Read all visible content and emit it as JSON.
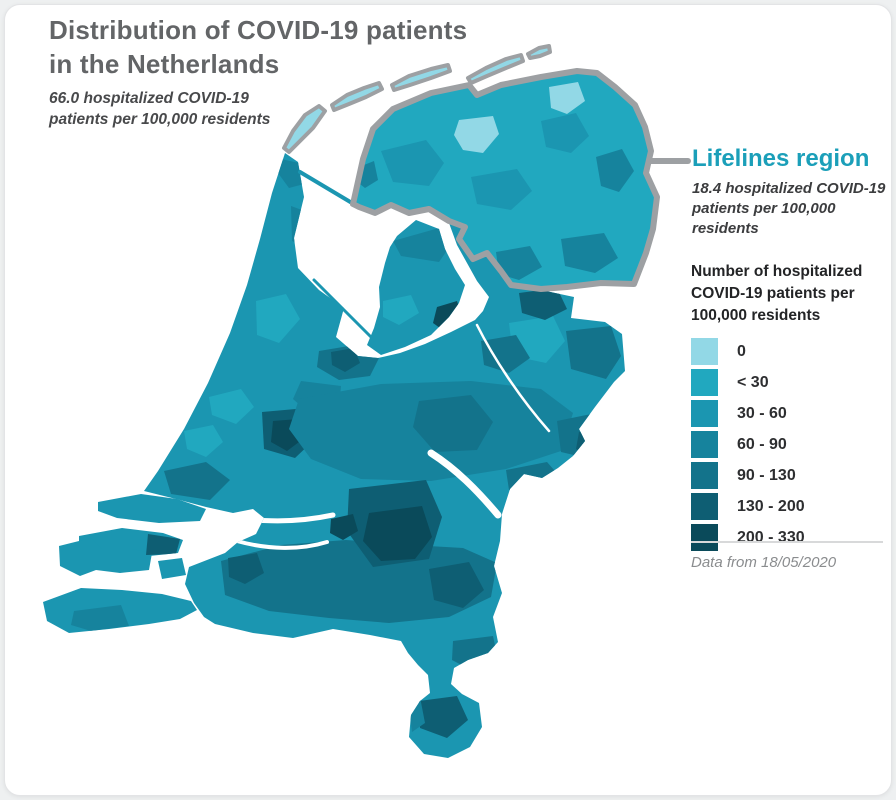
{
  "header": {
    "title_line1": "Distribution of COVID-19 patients",
    "title_line2": "in the Netherlands",
    "subtitle": "66.0 hospitalized COVID-19 patients per 100,000 residents"
  },
  "lifelines": {
    "title": "Lifelines region",
    "subtitle": "18.4 hospitalized COVID-19 patients per 100,000 residents"
  },
  "legend": {
    "title": "Number of hospitalized COVID-19 patients per 100,000 residents",
    "items": [
      {
        "label": "0",
        "color": "#92d8e6"
      },
      {
        "label": "< 30",
        "color": "#21a8bf"
      },
      {
        "label": "30 - 60",
        "color": "#1b96b1"
      },
      {
        "label": "60 - 90",
        "color": "#16839d"
      },
      {
        "label": "90 - 130",
        "color": "#13738b"
      },
      {
        "label": "130 - 200",
        "color": "#0e5e73"
      },
      {
        "label": "200 - 330",
        "color": "#0a4a5a"
      }
    ]
  },
  "footer": {
    "data_note": "Data from 18/05/2020"
  },
  "colors": {
    "accent_teal": "#1b9fb9",
    "title_gray": "#636567",
    "outline_gray": "#9da0a3",
    "note_gray": "#8a8c8e",
    "map_palette": [
      "#92d8e6",
      "#21a8bf",
      "#1b96b1",
      "#16839d",
      "#13738b",
      "#0e5e73",
      "#0a4a5a"
    ]
  }
}
